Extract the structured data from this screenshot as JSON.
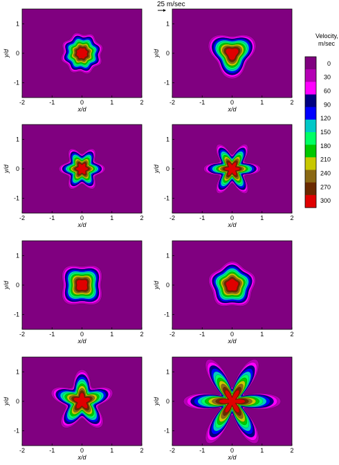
{
  "figure": {
    "reference_vector_label": "25 m/sec"
  },
  "colorbar": {
    "title_line1": "Velocity,",
    "title_line2": "m/sec",
    "ticks": [
      "0",
      "30",
      "60",
      "90",
      "120",
      "150",
      "180",
      "210",
      "240",
      "270",
      "300"
    ],
    "colors": [
      "#800080",
      "#b400b4",
      "#ff00ff",
      "#000080",
      "#0000ff",
      "#00c8c8",
      "#00ff64",
      "#00c800",
      "#c8c800",
      "#8b6914",
      "#6b2a00",
      "#e00000"
    ]
  },
  "chart_data": [
    {
      "type": "heatmap",
      "panel": "row1-left",
      "shape": "wavy circle",
      "lobes": 8,
      "scale": 0.45,
      "amplitude": 0.07,
      "phase": 0.3,
      "base_color": "#800080",
      "xlabel": "x/d",
      "ylabel": "y/d",
      "xlim": [
        -2,
        2
      ],
      "ylim": [
        -1.5,
        1.5
      ],
      "xticks": [
        "-2",
        "-1",
        "0",
        "1",
        "2"
      ],
      "yticks": [
        "1",
        "0",
        "-1"
      ]
    },
    {
      "type": "heatmap",
      "panel": "row1-right",
      "shape": "triangle",
      "lobes": 3,
      "scale": 0.48,
      "amplitude": 0.2,
      "phase": -1.5708,
      "base_color": "#800080",
      "xlabel": "x/d",
      "ylabel": "y/d",
      "xlim": [
        -2,
        2
      ],
      "ylim": [
        -1.5,
        1.5
      ],
      "xticks": [
        "-2",
        "-1",
        "0",
        "1",
        "2"
      ],
      "yticks": [
        "1",
        "0",
        "-1"
      ]
    },
    {
      "type": "heatmap",
      "panel": "row2-left",
      "shape": "6-point star",
      "lobes": 6,
      "scale": 0.43,
      "amplitude": 0.2,
      "phase": 0,
      "base_color": "#800080",
      "xlabel": "x/d",
      "ylabel": "y/d",
      "xlim": [
        -2,
        2
      ],
      "ylim": [
        -1.5,
        1.5
      ],
      "xticks": [
        "-2",
        "-1",
        "0",
        "1",
        "2"
      ],
      "yticks": [
        "1",
        "0",
        "-1"
      ]
    },
    {
      "type": "heatmap",
      "panel": "row2-right",
      "shape": "6-arm star",
      "lobes": 6,
      "scale": 0.48,
      "amplitude": 0.32,
      "phase": 0,
      "base_color": "#800080",
      "xlabel": "x/d",
      "ylabel": "y/d",
      "xlim": [
        -2,
        2
      ],
      "ylim": [
        -1.5,
        1.5
      ],
      "xticks": [
        "-2",
        "-1",
        "0",
        "1",
        "2"
      ],
      "yticks": [
        "1",
        "0",
        "-1"
      ]
    },
    {
      "type": "heatmap",
      "panel": "row3-left",
      "shape": "square",
      "lobes": 4,
      "scale": 0.48,
      "amplitude": 0.12,
      "phase": 0.7854,
      "base_color": "#800080",
      "xlabel": "x/d",
      "ylabel": "y/d",
      "xlim": [
        -2,
        2
      ],
      "ylim": [
        -1.5,
        1.5
      ],
      "xticks": [
        "-2",
        "-1",
        "0",
        "1",
        "2"
      ],
      "yticks": [
        "1",
        "0",
        "-1"
      ]
    },
    {
      "type": "heatmap",
      "panel": "row3-right",
      "shape": "pentagon",
      "lobes": 5,
      "scale": 0.5,
      "amplitude": 0.08,
      "phase": 1.5708,
      "base_color": "#800080",
      "xlabel": "x/d",
      "ylabel": "y/d",
      "xlim": [
        -2,
        2
      ],
      "ylim": [
        -1.5,
        1.5
      ],
      "xticks": [
        "-2",
        "-1",
        "0",
        "1",
        "2"
      ],
      "yticks": [
        "1",
        "0",
        "-1"
      ]
    },
    {
      "type": "heatmap",
      "panel": "row4-left",
      "shape": "5-point star",
      "lobes": 5,
      "scale": 0.55,
      "amplitude": 0.3,
      "phase": 1.5708,
      "base_color": "#800080",
      "xlabel": "x/d",
      "ylabel": "y/d",
      "xlim": [
        -2,
        2
      ],
      "ylim": [
        -1.5,
        1.5
      ],
      "xticks": [
        "-2",
        "-1",
        "0",
        "1",
        "2"
      ],
      "yticks": [
        "1",
        "0",
        "-1"
      ]
    },
    {
      "type": "heatmap",
      "panel": "row4-right",
      "shape": "6-arm long star",
      "lobes": 6,
      "scale": 0.7,
      "amplitude": 0.55,
      "phase": 0,
      "base_color": "#800080",
      "xlabel": "x/d",
      "ylabel": "y/d",
      "xlim": [
        -2,
        2
      ],
      "ylim": [
        -1.5,
        1.5
      ],
      "xticks": [
        "-2",
        "-1",
        "0",
        "1",
        "2"
      ],
      "yticks": [
        "1",
        "0",
        "-1"
      ]
    }
  ]
}
